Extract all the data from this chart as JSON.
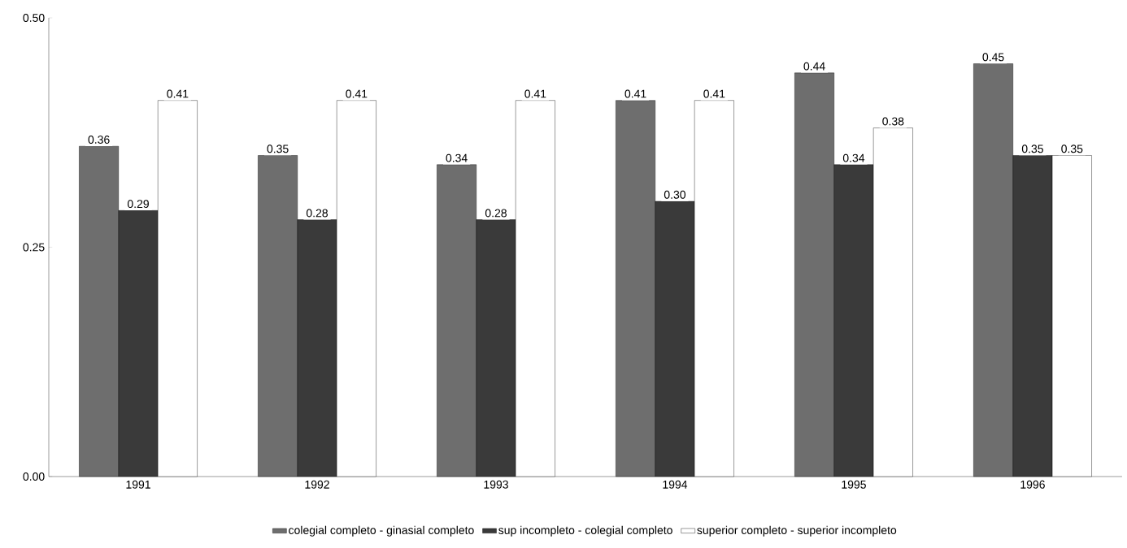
{
  "chart_data": {
    "type": "bar",
    "categories": [
      "1991",
      "1992",
      "1993",
      "1994",
      "1995",
      "1996"
    ],
    "series": [
      {
        "name": "colegial completo - ginasial completo",
        "color": "#6e6e6e",
        "values": [
          0.36,
          0.35,
          0.34,
          0.41,
          0.44,
          0.45
        ],
        "value_labels": [
          "0.36",
          "0.35",
          "0.34",
          "0.41",
          "0.44",
          "0.45"
        ]
      },
      {
        "name": "sup incompleto - colegial completo",
        "color": "#3a3a3a",
        "values": [
          0.29,
          0.28,
          0.28,
          0.3,
          0.34,
          0.35
        ],
        "value_labels": [
          "0.29",
          "0.28",
          "0.28",
          "0.30",
          "0.34",
          "0.35"
        ]
      },
      {
        "name": "superior completo - superior incompleto",
        "color": "#ffffff",
        "values": [
          0.41,
          0.41,
          0.41,
          0.41,
          0.38,
          0.35
        ],
        "value_labels": [
          "0.41",
          "0.41",
          "0.41",
          "0.41",
          "0.38",
          "0.35"
        ]
      }
    ],
    "ylim": [
      0,
      0.5
    ],
    "yticks": [
      {
        "value": 0,
        "label": "0.00"
      },
      {
        "value": 0.25,
        "label": "0.25"
      },
      {
        "value": 0.5,
        "label": "0.50"
      }
    ],
    "grid": false,
    "legend": "bottom"
  }
}
